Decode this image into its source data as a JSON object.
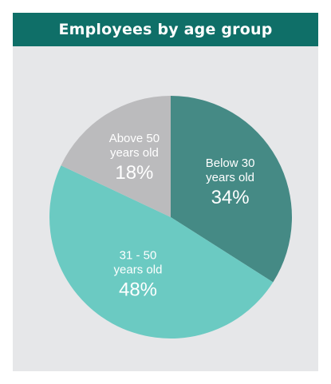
{
  "header": {
    "title": "Employees by age group"
  },
  "colors": {
    "header_bg": "#0f6f68",
    "panel_bg": "#e6e7e9"
  },
  "chart_data": {
    "type": "pie",
    "title": "Employees by age group",
    "slices": [
      {
        "label_line1": "Below 30",
        "label_line2": "years old",
        "value": 34,
        "value_label": "34%",
        "color": "#458a85"
      },
      {
        "label_line1": "31 - 50",
        "label_line2": "years old",
        "value": 48,
        "value_label": "48%",
        "color": "#6bcac2"
      },
      {
        "label_line1": "Above 50",
        "label_line2": "years old",
        "value": 18,
        "value_label": "18%",
        "color": "#bbbbbd"
      }
    ]
  }
}
